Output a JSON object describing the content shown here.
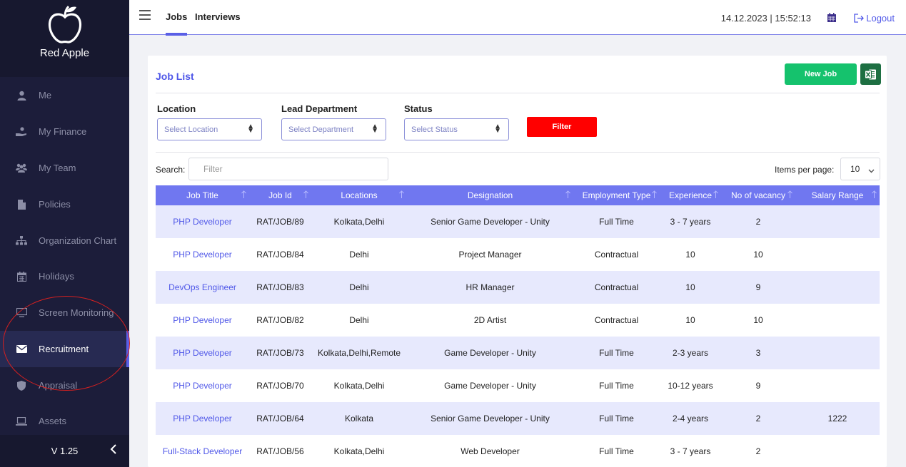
{
  "brand": {
    "name": "Red Apple"
  },
  "sidebar": {
    "items": [
      {
        "label": "Me",
        "icon": "user-icon",
        "active": false
      },
      {
        "label": "My Finance",
        "icon": "hand-coin-icon",
        "active": false
      },
      {
        "label": "My Team",
        "icon": "team-icon",
        "active": false
      },
      {
        "label": "Policies",
        "icon": "file-icon",
        "active": false
      },
      {
        "label": "Organization Chart",
        "icon": "sitemap-icon",
        "active": false
      },
      {
        "label": "Holidays",
        "icon": "calendar-icon",
        "active": false
      },
      {
        "label": "Screen Monitoring",
        "icon": "monitor-icon",
        "active": false
      },
      {
        "label": "Recruitment",
        "icon": "envelope-icon",
        "active": true
      },
      {
        "label": "Appraisal",
        "icon": "shield-icon",
        "active": false
      },
      {
        "label": "Assets",
        "icon": "laptop-icon",
        "active": false
      }
    ],
    "version": "V 1.25"
  },
  "topbar": {
    "tabs": [
      "Jobs",
      "Interviews"
    ],
    "datetime": "14.12.2023  |  15:52:13",
    "logout": "Logout"
  },
  "card": {
    "title": "Job List",
    "new_job": "New Job",
    "filters": {
      "location_label": "Location",
      "location_placeholder": "Select Location",
      "department_label": "Lead Department",
      "department_placeholder": "Select Department",
      "status_label": "Status",
      "status_placeholder": "Select Status",
      "filter_button": "Filter"
    },
    "search_label": "Search:",
    "search_placeholder": "Filter",
    "items_per_page_label": "Items per page:",
    "items_per_page": "10"
  },
  "table": {
    "columns": [
      "Job Title",
      "Job Id",
      "Locations",
      "Designation",
      "Employment Type",
      "Experience",
      "No of vacancy",
      "Salary Range"
    ],
    "rows": [
      [
        "PHP Developer",
        "RAT/JOB/89",
        "Kolkata,Delhi",
        "Senior Game Developer - Unity",
        "Full Time",
        "3 - 7 years",
        "2",
        ""
      ],
      [
        "PHP Developer",
        "RAT/JOB/84",
        "Delhi",
        "Project Manager",
        "Contractual",
        "10",
        "10",
        ""
      ],
      [
        "DevOps Engineer",
        "RAT/JOB/83",
        "Delhi",
        "HR Manager",
        "Contractual",
        "10",
        "9",
        ""
      ],
      [
        "PHP Developer",
        "RAT/JOB/82",
        "Delhi",
        "2D Artist",
        "Contractual",
        "10",
        "10",
        ""
      ],
      [
        "PHP Developer",
        "RAT/JOB/73",
        "Kolkata,Delhi,Remote",
        "Game Developer - Unity",
        "Full Time",
        "2-3 years",
        "3",
        ""
      ],
      [
        "PHP Developer",
        "RAT/JOB/70",
        "Kolkata,Delhi",
        "Game Developer - Unity",
        "Full Time",
        "10-12 years",
        "9",
        ""
      ],
      [
        "PHP Developer",
        "RAT/JOB/64",
        "Kolkata",
        "Senior Game Developer - Unity",
        "Full Time",
        "2-4 years",
        "2",
        "1222"
      ],
      [
        "Full-Stack Developer",
        "RAT/JOB/56",
        "Kolkata,Delhi",
        "Web Developer",
        "Full Time",
        "3 - 7 years",
        "2",
        ""
      ]
    ]
  },
  "colors": {
    "sidebar_bg": "#1c1d3a",
    "accent": "#5a5fe6",
    "table_header": "#7077f0",
    "new_job_button": "#15c26d",
    "filter_button": "#ff0000",
    "annotation_circle": "#d42020"
  }
}
